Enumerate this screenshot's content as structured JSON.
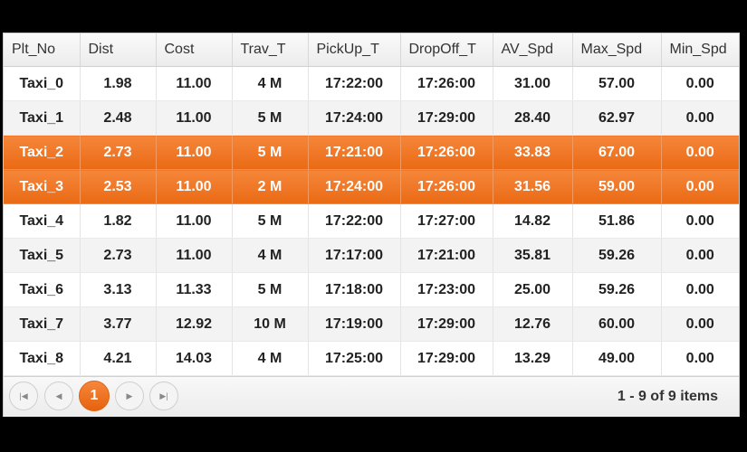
{
  "columns": [
    "Plt_No",
    "Dist",
    "Cost",
    "Trav_T",
    "PickUp_T",
    "DropOff_T",
    "AV_Spd",
    "Max_Spd",
    "Min_Spd"
  ],
  "rows": [
    [
      "Taxi_0",
      "1.98",
      "11.00",
      "4 M",
      "17:22:00",
      "17:26:00",
      "31.00",
      "57.00",
      "0.00"
    ],
    [
      "Taxi_1",
      "2.48",
      "11.00",
      "5 M",
      "17:24:00",
      "17:29:00",
      "28.40",
      "62.97",
      "0.00"
    ],
    [
      "Taxi_2",
      "2.73",
      "11.00",
      "5 M",
      "17:21:00",
      "17:26:00",
      "33.83",
      "67.00",
      "0.00"
    ],
    [
      "Taxi_3",
      "2.53",
      "11.00",
      "2 M",
      "17:24:00",
      "17:26:00",
      "31.56",
      "59.00",
      "0.00"
    ],
    [
      "Taxi_4",
      "1.82",
      "11.00",
      "5 M",
      "17:22:00",
      "17:27:00",
      "14.82",
      "51.86",
      "0.00"
    ],
    [
      "Taxi_5",
      "2.73",
      "11.00",
      "4 M",
      "17:17:00",
      "17:21:00",
      "35.81",
      "59.26",
      "0.00"
    ],
    [
      "Taxi_6",
      "3.13",
      "11.33",
      "5 M",
      "17:18:00",
      "17:23:00",
      "25.00",
      "59.26",
      "0.00"
    ],
    [
      "Taxi_7",
      "3.77",
      "12.92",
      "10 M",
      "17:19:00",
      "17:29:00",
      "12.76",
      "60.00",
      "0.00"
    ],
    [
      "Taxi_8",
      "4.21",
      "14.03",
      "4 M",
      "17:25:00",
      "17:29:00",
      "13.29",
      "49.00",
      "0.00"
    ]
  ],
  "selected_rows": [
    2,
    3
  ],
  "pager": {
    "first_icon": "first-page-icon",
    "prev_icon": "prev-page-icon",
    "current_page": "1",
    "next_icon": "next-page-icon",
    "last_icon": "last-page-icon",
    "info": "1 - 9 of 9 items"
  },
  "colors": {
    "accent": "#ee7020",
    "header": "#f0f0f0"
  }
}
